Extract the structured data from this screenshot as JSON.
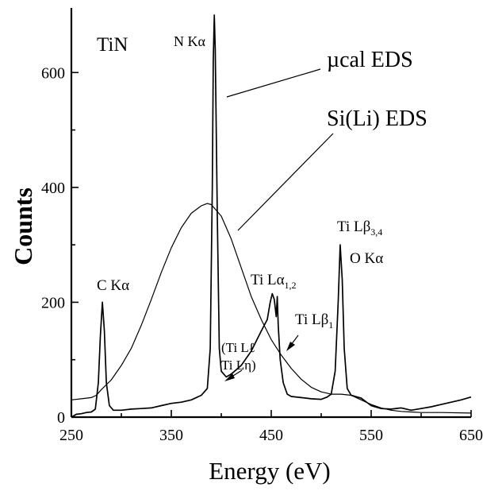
{
  "chart_data": {
    "type": "line",
    "xlabel": "Energy (eV)",
    "ylabel": "Counts",
    "xlim": [
      250,
      650
    ],
    "ylim": [
      0,
      700
    ],
    "x_ticks": [
      250,
      350,
      450,
      550,
      650
    ],
    "y_ticks": [
      0,
      200,
      400,
      600
    ],
    "x_tick_labels": [
      "250",
      "350",
      "450",
      "550",
      "650"
    ],
    "y_tick_labels": [
      "0",
      "200",
      "400",
      "600"
    ],
    "grid": false,
    "legend": "none",
    "series": [
      {
        "name": "µcal EDS",
        "points": [
          [
            250,
            0
          ],
          [
            255,
            5
          ],
          [
            260,
            6
          ],
          [
            265,
            8
          ],
          [
            270,
            9
          ],
          [
            274,
            14
          ],
          [
            277,
            60
          ],
          [
            279,
            140
          ],
          [
            281,
            200
          ],
          [
            283,
            150
          ],
          [
            285,
            60
          ],
          [
            288,
            20
          ],
          [
            292,
            12
          ],
          [
            300,
            12
          ],
          [
            310,
            14
          ],
          [
            320,
            15
          ],
          [
            330,
            16
          ],
          [
            340,
            20
          ],
          [
            350,
            24
          ],
          [
            360,
            26
          ],
          [
            370,
            30
          ],
          [
            380,
            38
          ],
          [
            386,
            50
          ],
          [
            389,
            120
          ],
          [
            391,
            400
          ],
          [
            392,
            620
          ],
          [
            393,
            700
          ],
          [
            394,
            640
          ],
          [
            396,
            350
          ],
          [
            398,
            120
          ],
          [
            400,
            80
          ],
          [
            405,
            70
          ],
          [
            410,
            75
          ],
          [
            420,
            90
          ],
          [
            430,
            115
          ],
          [
            440,
            150
          ],
          [
            446,
            170
          ],
          [
            449,
            200
          ],
          [
            451,
            215
          ],
          [
            453,
            205
          ],
          [
            455,
            175
          ],
          [
            456,
            210
          ],
          [
            457,
            160
          ],
          [
            459,
            100
          ],
          [
            462,
            60
          ],
          [
            466,
            40
          ],
          [
            470,
            36
          ],
          [
            480,
            34
          ],
          [
            490,
            32
          ],
          [
            500,
            31
          ],
          [
            506,
            35
          ],
          [
            510,
            40
          ],
          [
            514,
            80
          ],
          [
            517,
            200
          ],
          [
            519,
            300
          ],
          [
            521,
            240
          ],
          [
            523,
            120
          ],
          [
            526,
            50
          ],
          [
            530,
            38
          ],
          [
            540,
            33
          ],
          [
            550,
            20
          ],
          [
            560,
            15
          ],
          [
            570,
            14
          ],
          [
            580,
            16
          ],
          [
            590,
            12
          ],
          [
            600,
            15
          ],
          [
            610,
            18
          ],
          [
            620,
            22
          ],
          [
            630,
            26
          ],
          [
            640,
            30
          ],
          [
            650,
            35
          ]
        ]
      },
      {
        "name": "Si(Li) EDS",
        "points": [
          [
            250,
            30
          ],
          [
            260,
            32
          ],
          [
            270,
            34
          ],
          [
            275,
            38
          ],
          [
            280,
            48
          ],
          [
            290,
            65
          ],
          [
            300,
            90
          ],
          [
            310,
            120
          ],
          [
            320,
            160
          ],
          [
            330,
            205
          ],
          [
            340,
            252
          ],
          [
            350,
            295
          ],
          [
            360,
            330
          ],
          [
            370,
            355
          ],
          [
            380,
            368
          ],
          [
            386,
            372
          ],
          [
            390,
            370
          ],
          [
            400,
            350
          ],
          [
            410,
            310
          ],
          [
            420,
            260
          ],
          [
            430,
            210
          ],
          [
            440,
            170
          ],
          [
            450,
            135
          ],
          [
            460,
            108
          ],
          [
            470,
            85
          ],
          [
            480,
            66
          ],
          [
            490,
            52
          ],
          [
            500,
            44
          ],
          [
            510,
            40
          ],
          [
            520,
            40
          ],
          [
            530,
            38
          ],
          [
            540,
            30
          ],
          [
            550,
            22
          ],
          [
            560,
            16
          ],
          [
            570,
            12
          ],
          [
            580,
            10
          ],
          [
            590,
            9
          ],
          [
            600,
            8
          ],
          [
            620,
            8
          ],
          [
            650,
            7
          ]
        ]
      }
    ],
    "annotations": [
      {
        "id": "tin",
        "text": "TiN"
      },
      {
        "id": "nka",
        "text": "N Kα"
      },
      {
        "id": "ucal",
        "text": "µcal EDS"
      },
      {
        "id": "sili",
        "text": "Si(Li) EDS"
      },
      {
        "id": "cka",
        "text": "C Kα"
      },
      {
        "id": "tila12",
        "text": "Ti Lα",
        "sub": "1,2"
      },
      {
        "id": "tilb1",
        "text": "Ti Lβ",
        "sub": "1"
      },
      {
        "id": "tilb34",
        "text": "Ti Lβ",
        "sub": "3,4"
      },
      {
        "id": "oka",
        "text": "O Kα"
      },
      {
        "id": "til_l",
        "text": "(Ti Lℓ"
      },
      {
        "id": "til_eta",
        "text": "Ti Lη)"
      }
    ]
  }
}
